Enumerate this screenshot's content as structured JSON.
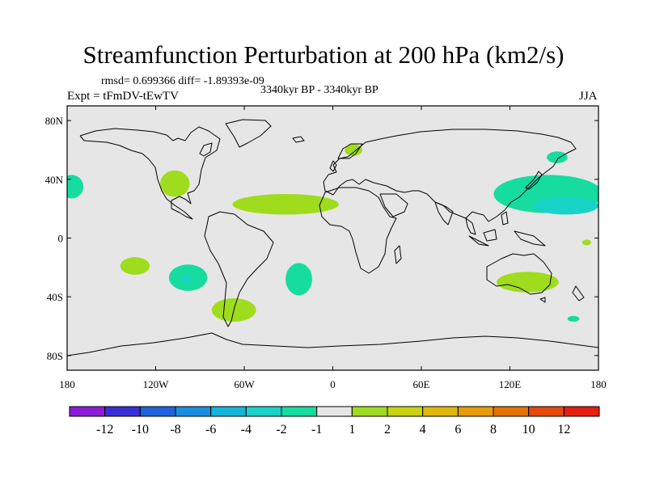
{
  "header": {
    "title": "Streamfunction Perturbation at 200 hPa (km2/s)",
    "stats": "rmsd= 0.699366 diff= -1.89393e-09",
    "experiment": "Expt = tFmDV-tEwTV",
    "period": "3340kyr BP - 3340kyr BP",
    "season": "JJA"
  },
  "chart_data": {
    "type": "heatmap",
    "title": "Streamfunction Perturbation at 200 hPa (km2/s)",
    "projection": "cylindrical-equidistant",
    "xlabel": "",
    "ylabel": "",
    "xlim": [
      -180,
      180
    ],
    "ylim": [
      -90,
      90
    ],
    "x_ticks": [
      {
        "value": -180,
        "label": "180"
      },
      {
        "value": -120,
        "label": "120W"
      },
      {
        "value": -60,
        "label": "60W"
      },
      {
        "value": 0,
        "label": "0"
      },
      {
        "value": 60,
        "label": "60E"
      },
      {
        "value": 120,
        "label": "120E"
      },
      {
        "value": 180,
        "label": "180"
      }
    ],
    "y_ticks": [
      {
        "value": 80,
        "label": "80N"
      },
      {
        "value": 40,
        "label": "40N"
      },
      {
        "value": 0,
        "label": "0"
      },
      {
        "value": -40,
        "label": "40S"
      },
      {
        "value": -80,
        "label": "80S"
      }
    ],
    "background_color": "#e6e6e6",
    "colorbar": {
      "colors": [
        "#8c1cd8",
        "#3a2fd6",
        "#1e63dc",
        "#1a8ee0",
        "#14b4dc",
        "#18d3c8",
        "#16dca0",
        "#e6e6e6",
        "#a0dc1e",
        "#c8d210",
        "#e0b80a",
        "#e69a06",
        "#e67205",
        "#e64a08",
        "#e61e0e"
      ],
      "labels": [
        "-12",
        "-10",
        "-8",
        "-6",
        "-4",
        "-2",
        "-1",
        "1",
        "2",
        "4",
        "6",
        "8",
        "10",
        "12"
      ]
    },
    "anomaly_regions": [
      {
        "name": "North Pacific east (dateline)",
        "level": "-1",
        "color": "#16dca0",
        "lon": -177,
        "lat": 35,
        "rx": 8,
        "ry": 8
      },
      {
        "name": "Western US",
        "level": "2",
        "color": "#a0dc1e",
        "lon": -107,
        "lat": 37,
        "rx": 10,
        "ry": 9
      },
      {
        "name": "Tropical Atlantic - North Africa band",
        "level": "2",
        "color": "#a0dc1e",
        "lon": -32,
        "lat": 23,
        "rx": 36,
        "ry": 7
      },
      {
        "name": "Scandinavia",
        "level": "2",
        "color": "#a0dc1e",
        "lon": 14,
        "lat": 60,
        "rx": 6,
        "ry": 4
      },
      {
        "name": "South Pacific west",
        "level": "2",
        "color": "#a0dc1e",
        "lon": -134,
        "lat": -19,
        "rx": 10,
        "ry": 6
      },
      {
        "name": "South Pacific off Chile",
        "level": "-1",
        "color": "#16dca0",
        "lon": -98,
        "lat": -27,
        "rx": 13,
        "ry": 9
      },
      {
        "name": "South Pacific off Chile core",
        "level": "-2",
        "color": "#18d3c8",
        "lon": -99,
        "lat": -28,
        "rx": 4,
        "ry": 2.5
      },
      {
        "name": "Southern South America",
        "level": "2",
        "color": "#a0dc1e",
        "lon": -67,
        "lat": -49,
        "rx": 15,
        "ry": 8
      },
      {
        "name": "South Atlantic",
        "level": "-1",
        "color": "#16dca0",
        "lon": -23,
        "lat": -28,
        "rx": 9,
        "ry": 11
      },
      {
        "name": "Western Pacific / Japan",
        "level": "-1",
        "color": "#16dca0",
        "lon": 146,
        "lat": 30,
        "rx": 37,
        "ry": 13
      },
      {
        "name": "Western Pacific core",
        "level": "-2",
        "color": "#18d3c8",
        "lon": 158,
        "lat": 22,
        "rx": 22,
        "ry": 6
      },
      {
        "name": "Northeast Asia / Kamchatka",
        "level": "-1",
        "color": "#16dca0",
        "lon": 152,
        "lat": 55,
        "rx": 7,
        "ry": 4
      },
      {
        "name": "Australia",
        "level": "2",
        "color": "#a0dc1e",
        "lon": 132,
        "lat": -30,
        "rx": 21,
        "ry": 7
      },
      {
        "name": "Tasman Sea south",
        "level": "-1",
        "color": "#16dca0",
        "lon": 163,
        "lat": -55,
        "rx": 4,
        "ry": 2
      },
      {
        "name": "Southwest Pacific islands",
        "level": "2",
        "color": "#a0dc1e",
        "lon": 172,
        "lat": -3,
        "rx": 3,
        "ry": 2
      }
    ]
  }
}
